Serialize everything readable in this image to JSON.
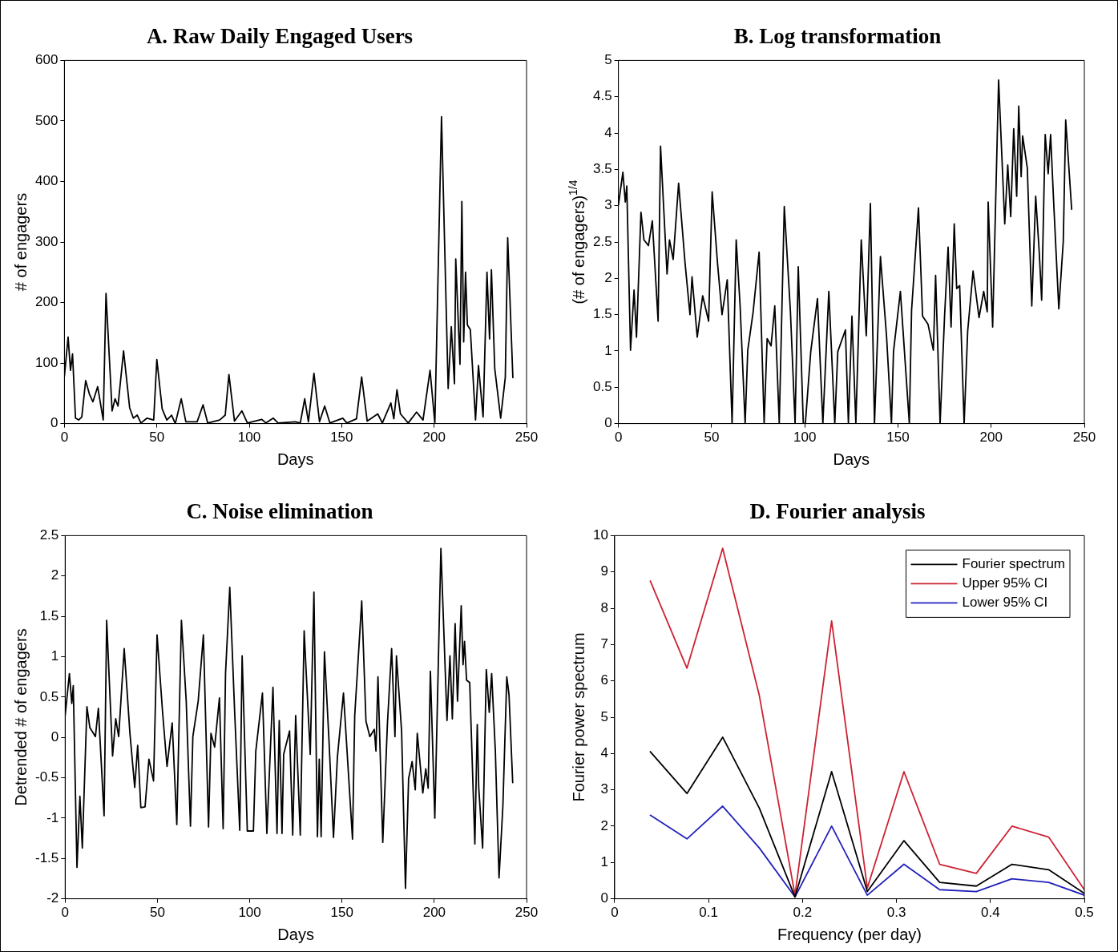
{
  "chart_data": [
    {
      "type": "line",
      "title": "A. Raw Daily Engaged Users",
      "xlabel": "Days",
      "ylabel": "# of engagers",
      "xlim": [
        0,
        250
      ],
      "xticks": [
        0,
        50,
        100,
        150,
        200,
        250
      ],
      "ylim": [
        0,
        600
      ],
      "yticks": [
        0,
        100,
        200,
        300,
        400,
        500,
        600
      ],
      "grid": false,
      "legend": false,
      "marker": "none",
      "line_style": "solid",
      "x": [
        0,
        2,
        3.3,
        4.4,
        6,
        7.7,
        9.4,
        11.5,
        13.5,
        15.4,
        18,
        21,
        22.5,
        25.8,
        27.4,
        29,
        32,
        35.3,
        37.3,
        39.4,
        41.4,
        44.7,
        48.3,
        50,
        52.9,
        55.4,
        58,
        60,
        63.2,
        65.7,
        71.8,
        75,
        77.5,
        84,
        87,
        89,
        92,
        96,
        99,
        106.8,
        109,
        113,
        115.6,
        125,
        127.6,
        130,
        132,
        135,
        138,
        140.8,
        143.6,
        150.6,
        152.8,
        158,
        160.8,
        163.8,
        169.5,
        172,
        176.6,
        178.2,
        179.9,
        181.8,
        186,
        190.5,
        194,
        197.8,
        200.4,
        204,
        207.6,
        209.3,
        211,
        211.7,
        214,
        215,
        216,
        217,
        218,
        219.6,
        222.4,
        224,
        226.5,
        228.6,
        230,
        231,
        232.8,
        236,
        238.5,
        239.8,
        242.6
      ],
      "series": [
        {
          "color": "#000000",
          "values": [
            78,
            143,
            88,
            115,
            9,
            6,
            11,
            71,
            49,
            36,
            61,
            6,
            215,
            21,
            41,
            29,
            120,
            26,
            9,
            14,
            1,
            9,
            6,
            106,
            24,
            6,
            14,
            0,
            41,
            3,
            3,
            31,
            1,
            6,
            14,
            81,
            4,
            21,
            1,
            7,
            1,
            9,
            1,
            3,
            1,
            41,
            3,
            83,
            3,
            29,
            1,
            9,
            1,
            8,
            77,
            4,
            16,
            1,
            34,
            8,
            56,
            16,
            1,
            19,
            6,
            88,
            1,
            507,
            58,
            160,
            66,
            272,
            98,
            367,
            135,
            250,
            163,
            155,
            6,
            96,
            11,
            250,
            140,
            254,
            91,
            9,
            76,
            307,
            76
          ]
        }
      ]
    },
    {
      "type": "line",
      "title": "B. Log transformation",
      "xlabel": "Days",
      "ylabel": "(# of engagers)$^{1/4}$",
      "xlim": [
        0,
        250
      ],
      "xticks": [
        0,
        50,
        100,
        150,
        200,
        250
      ],
      "ylim": [
        0,
        5
      ],
      "yticks": [
        0,
        0.5,
        1,
        1.5,
        2,
        2.5,
        3,
        3.5,
        4,
        4.5,
        5
      ],
      "grid": false,
      "legend": false,
      "marker": "none",
      "line_style": "solid",
      "x": [
        0,
        2.4,
        3.7,
        4.5,
        6.5,
        8.4,
        9.7,
        12.1,
        13.7,
        16.1,
        18.2,
        21.3,
        22.6,
        26.1,
        27.4,
        29.4,
        32.3,
        35.8,
        38.4,
        39.5,
        42.3,
        45.2,
        48.4,
        50.3,
        53.2,
        55.6,
        58.4,
        61,
        63.2,
        65.3,
        68,
        69.4,
        72.3,
        75.5,
        78.2,
        79.8,
        81.9,
        83.9,
        86.3,
        89,
        92.3,
        94.8,
        96.5,
        99.2,
        100.3,
        103.2,
        106.8,
        109.7,
        112.9,
        116.1,
        117.7,
        121.8,
        123.4,
        125.3,
        127.4,
        130.3,
        133,
        135.2,
        137.4,
        140.6,
        143.9,
        146.5,
        147.6,
        151.3,
        156.1,
        157.3,
        161,
        163.2,
        166.1,
        169,
        170.2,
        172.6,
        175,
        176.9,
        178.5,
        180.2,
        181.5,
        183.1,
        185.5,
        187.4,
        190.3,
        193.5,
        196,
        197.9,
        198.4,
        200.8,
        204,
        207.3,
        208.9,
        210.5,
        212.1,
        213.7,
        214.8,
        216.1,
        216.9,
        219.4,
        221.8,
        223.9,
        225.8,
        227.1,
        229,
        230.6,
        231.9,
        233.5,
        236.3,
        238.7,
        240,
        243.2
      ],
      "series": [
        {
          "color": "#000000",
          "values": [
            3.01,
            3.46,
            3.05,
            3.27,
            1.01,
            1.84,
            1.19,
            2.91,
            2.53,
            2.45,
            2.79,
            1.41,
            3.82,
            2.06,
            2.53,
            2.26,
            3.31,
            2.2,
            1.5,
            2.02,
            1.19,
            1.76,
            1.41,
            3.19,
            2.2,
            1.5,
            1.98,
            0,
            2.53,
            1.62,
            0,
            1.01,
            1.54,
            2.36,
            0,
            1.17,
            1.07,
            1.62,
            0,
            2.99,
            1.54,
            0,
            2.16,
            0,
            0,
            0.99,
            1.72,
            0,
            1.82,
            0,
            0.99,
            1.29,
            0,
            1.48,
            0,
            2.53,
            1.21,
            3.03,
            0,
            2.3,
            1.19,
            0,
            0.99,
            1.82,
            0,
            1.56,
            2.97,
            1.48,
            1.37,
            1.01,
            2.04,
            0,
            1.48,
            2.43,
            1.33,
            2.75,
            1.86,
            1.9,
            0,
            1.27,
            2.1,
            1.46,
            1.82,
            1.54,
            3.05,
            1.33,
            4.73,
            2.75,
            3.56,
            2.85,
            4.06,
            3.13,
            4.37,
            3.4,
            3.96,
            3.52,
            1.62,
            3.13,
            2.36,
            1.7,
            3.98,
            3.44,
            3.98,
            3.07,
            1.58,
            2.51,
            4.18,
            2.95
          ]
        }
      ]
    },
    {
      "type": "line",
      "title": "C. Noise elimination",
      "xlabel": "Days",
      "ylabel": "Detrended # of engagers",
      "xlim": [
        0,
        250
      ],
      "xticks": [
        0,
        50,
        100,
        150,
        200,
        250
      ],
      "ylim": [
        -2,
        2.5
      ],
      "yticks": [
        -2,
        -1.5,
        -1,
        -0.5,
        0,
        0.5,
        1,
        1.5,
        2,
        2.5
      ],
      "grid": false,
      "legend": false,
      "marker": "none",
      "line_style": "solid",
      "x": [
        0,
        2.3,
        3.6,
        4.4,
        6.4,
        8,
        9.3,
        11.8,
        13.4,
        16.4,
        18,
        21.1,
        22.5,
        25.7,
        27.4,
        29,
        32,
        35.1,
        37.7,
        39.3,
        41,
        43.3,
        45.4,
        47.9,
        49.8,
        52.8,
        55.2,
        58,
        60.5,
        63,
        65.6,
        67.9,
        69.2,
        72.1,
        74.9,
        77.7,
        79,
        81,
        83.6,
        85.6,
        86.9,
        89.2,
        91.8,
        94.6,
        95.9,
        98.7,
        102,
        103.3,
        106.9,
        109.3,
        112.6,
        114.8,
        116,
        117.5,
        118.4,
        121.6,
        123.3,
        124.9,
        127.4,
        129.5,
        132.8,
        134.8,
        136.7,
        137.7,
        138.7,
        140.5,
        143,
        145.4,
        147.5,
        150.8,
        155.7,
        156.9,
        160.7,
        163,
        165.1,
        167.5,
        168.4,
        169.5,
        172.1,
        174.6,
        176.9,
        178.7,
        179.5,
        182.3,
        184.4,
        186.1,
        188,
        189.7,
        190.8,
        193.8,
        195.4,
        196.7,
        197.9,
        200.3,
        203.6,
        206.9,
        208.5,
        209.8,
        211.3,
        212.6,
        214.6,
        215.6,
        216.4,
        217.5,
        219.2,
        222,
        223.3,
        224.1,
        226.2,
        228.2,
        229.8,
        231.1,
        233.1,
        235.1,
        237.2,
        239.3,
        240.5,
        242.5
      ],
      "series": [
        {
          "color": "#000000",
          "values": [
            0.27,
            0.79,
            0.42,
            0.64,
            -1.61,
            -0.73,
            -1.37,
            0.38,
            0.12,
            0.01,
            0.36,
            -0.97,
            1.45,
            -0.23,
            0.23,
            0.01,
            1.1,
            0.05,
            -0.62,
            -0.1,
            -0.87,
            -0.86,
            -0.27,
            -0.54,
            1.27,
            0.31,
            -0.36,
            0.18,
            -1.08,
            1.45,
            0.45,
            -1.1,
            0.01,
            0.45,
            1.27,
            -1.11,
            0.05,
            -0.12,
            0.49,
            -1.13,
            0.79,
            1.86,
            0.34,
            -1.15,
            1.01,
            -1.16,
            -1.16,
            -0.17,
            0.55,
            -1.19,
            0.62,
            -1.19,
            0.21,
            -1.19,
            -0.21,
            0.08,
            -1.21,
            0.27,
            -1.21,
            1.32,
            -0.21,
            1.8,
            -1.23,
            -0.27,
            -1.23,
            1.06,
            -0.06,
            -1.24,
            -0.25,
            0.55,
            -1.26,
            0.27,
            1.69,
            0.2,
            0.01,
            0.1,
            -0.17,
            0.75,
            -1.3,
            0.16,
            1.1,
            0.01,
            1.01,
            0.08,
            -1.87,
            -0.51,
            -0.3,
            -0.65,
            0.05,
            -0.69,
            -0.39,
            -0.63,
            0.82,
            -1,
            2.34,
            0.21,
            1.01,
            0.23,
            1.41,
            0.45,
            1.63,
            0.9,
            1.19,
            0.71,
            0.68,
            -1.32,
            0.16,
            -0.62,
            -1.37,
            0.84,
            0.31,
            0.79,
            -0.17,
            -1.74,
            -0.84,
            0.75,
            0.53,
            -0.56
          ]
        }
      ]
    },
    {
      "type": "line",
      "title": "D. Fourier analysis",
      "xlabel": "Frequency (per day)",
      "ylabel": "Fourier power spectrum",
      "xlim": [
        0,
        0.5
      ],
      "xticks": [
        0,
        0.1,
        0.2,
        0.3,
        0.4,
        0.5
      ],
      "ylim": [
        0,
        10
      ],
      "yticks": [
        0,
        1,
        2,
        3,
        4,
        5,
        6,
        7,
        8,
        9,
        10
      ],
      "grid": false,
      "legend": "top right",
      "marker": "none",
      "line_style": "solid",
      "x": [
        0.038,
        0.077,
        0.115,
        0.154,
        0.192,
        0.231,
        0.269,
        0.308,
        0.346,
        0.385,
        0.423,
        0.462,
        0.5
      ],
      "series": [
        {
          "name": "Fourier spectrum",
          "color": "#000000",
          "values": [
            4.05,
            2.9,
            4.45,
            2.5,
            0.05,
            3.5,
            0.2,
            1.6,
            0.45,
            0.35,
            0.95,
            0.8,
            0.15
          ]
        },
        {
          "name": "Upper 95% CI",
          "color": "#cc2233",
          "values": [
            8.75,
            6.35,
            9.65,
            5.6,
            0.1,
            7.65,
            0.3,
            3.5,
            0.95,
            0.7,
            2.0,
            1.7,
            0.25
          ]
        },
        {
          "name": "Lower 95% CI",
          "color": "#2222bb",
          "values": [
            2.3,
            1.65,
            2.55,
            1.4,
            0.05,
            2.0,
            0.1,
            0.95,
            0.25,
            0.2,
            0.55,
            0.45,
            0.1
          ]
        }
      ]
    }
  ]
}
